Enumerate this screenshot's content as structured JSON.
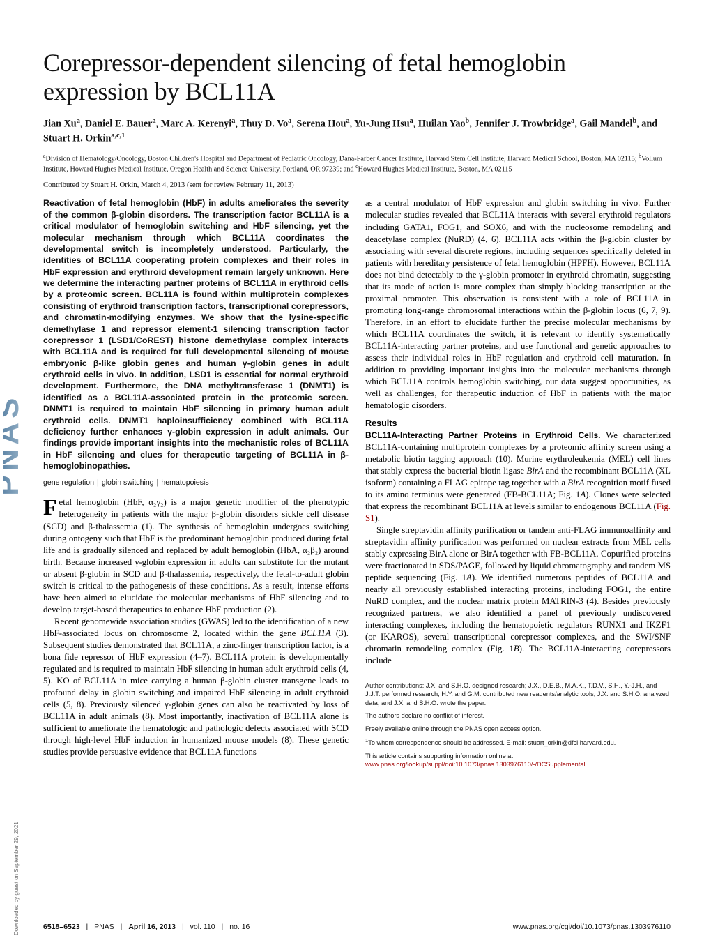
{
  "logo": {
    "letters": "PNAS PNAS",
    "grad_start": "#9fb8cc",
    "grad_end": "#3e6c94"
  },
  "download_note": "Downloaded by guest on September 29, 2021",
  "title": "Corepressor-dependent silencing of fetal hemoglobin expression by BCL11A",
  "authors_html": "Jian Xu<sup>a</sup>, Daniel E. Bauer<sup>a</sup>, Marc A. Kerenyi<sup>a</sup>, Thuy D. Vo<sup>a</sup>, Serena Hou<sup>a</sup>, Yu-Jung Hsu<sup>a</sup>, Huilan Yao<sup>b</sup>, Jennifer J. Trowbridge<sup>a</sup>, Gail Mandel<sup>b</sup>, and Stuart H. Orkin<sup>a,c,1</sup>",
  "affiliations_html": "<sup>a</sup>Division of Hematology/Oncology, Boston Children's Hospital and Department of Pediatric Oncology, Dana-Farber Cancer Institute, Harvard Stem Cell Institute, Harvard Medical School, Boston, MA 02115; <sup>b</sup>Vollum Institute, Howard Hughes Medical Institute, Oregon Health and Science University, Portland, OR 97239; and <sup>c</sup>Howard Hughes Medical Institute, Boston, MA 02115",
  "contributed": "Contributed by Stuart H. Orkin, March 4, 2013 (sent for review February 11, 2013)",
  "abstract": "Reactivation of fetal hemoglobin (HbF) in adults ameliorates the severity of the common β-globin disorders. The transcription factor BCL11A is a critical modulator of hemoglobin switching and HbF silencing, yet the molecular mechanism through which BCL11A coordinates the developmental switch is incompletely understood. Particularly, the identities of BCL11A cooperating protein complexes and their roles in HbF expression and erythroid development remain largely unknown. Here we determine the interacting partner proteins of BCL11A in erythroid cells by a proteomic screen. BCL11A is found within multiprotein complexes consisting of erythroid transcription factors, transcriptional corepressors, and chromatin-modifying enzymes. We show that the lysine-specific demethylase 1 and repressor element-1 silencing transcription factor corepressor 1 (LSD1/CoREST) histone demethylase complex interacts with BCL11A and is required for full developmental silencing of mouse embryonic β-like globin genes and human γ-globin genes in adult erythroid cells in vivo. In addition, LSD1 is essential for normal erythroid development. Furthermore, the DNA methyltransferase 1 (DNMT1) is identified as a BCL11A-associated protein in the proteomic screen. DNMT1 is required to maintain HbF silencing in primary human adult erythroid cells. DNMT1 haploinsufficiency combined with BCL11A deficiency further enhances γ-globin expression in adult animals. Our findings provide important insights into the mechanistic roles of BCL11A in HbF silencing and clues for therapeutic targeting of BCL11A in β-hemoglobinopathies.",
  "keywords": [
    "gene regulation",
    "globin switching",
    "hematopoiesis"
  ],
  "body_para_1": "etal hemoglobin (HbF, α₂γ₂) is a major genetic modifier of the phenotypic heterogeneity in patients with the major β-globin disorders sickle cell disease (SCD) and β-thalassemia (1). The synthesis of hemoglobin undergoes switching during ontogeny such that HbF is the predominant hemoglobin produced during fetal life and is gradually silenced and replaced by adult hemoglobin (HbA, α₂β₂) around birth. Because increased γ-globin expression in adults can substitute for the mutant or absent β-globin in SCD and β-thalassemia, respectively, the fetal-to-adult globin switch is critical to the pathogenesis of these conditions. As a result, intense efforts have been aimed to elucidate the molecular mechanisms of HbF silencing and to develop target-based therapeutics to enhance HbF production (2).",
  "body_para_2_html": "Recent genomewide association studies (GWAS) led to the identification of a new HbF-associated locus on chromosome 2, located within the gene <i>BCL11A</i> (3). Subsequent studies demonstrated that BCL11A, a zinc-finger transcription factor, is a bona fide repressor of HbF expression (4–7). BCL11A protein is developmentally regulated and is required to maintain HbF silencing in human adult erythroid cells (4, 5). KO of BCL11A in mice carrying a human β-globin cluster transgene leads to profound delay in globin switching and impaired HbF silencing in adult erythroid cells (5, 8). Previously silenced γ-globin genes can also be reactivated by loss of BCL11A in adult animals (8). Most importantly, inactivation of BCL11A alone is sufficient to ameliorate the hematologic and pathologic defects associated with SCD through high-level HbF induction in humanized mouse models (8). These genetic studies provide persuasive evidence that BCL11A functions",
  "body_para_3": "as a central modulator of HbF expression and globin switching in vivo. Further molecular studies revealed that BCL11A interacts with several erythroid regulators including GATA1, FOG1, and SOX6, and with the nucleosome remodeling and deacetylase complex (NuRD) (4, 6). BCL11A acts within the β-globin cluster by associating with several discrete regions, including sequences specifically deleted in patients with hereditary persistence of fetal hemoglobin (HPFH). However, BCL11A does not bind detectably to the γ-globin promoter in erythroid chromatin, suggesting that its mode of action is more complex than simply blocking transcription at the proximal promoter. This observation is consistent with a role of BCL11A in promoting long-range chromosomal interactions within the β-globin locus (6, 7, 9). Therefore, in an effort to elucidate further the precise molecular mechanisms by which BCL11A coordinates the switch, it is relevant to identify systematically BCL11A-interacting partner proteins, and use functional and genetic approaches to assess their individual roles in HbF regulation and erythroid cell maturation. In addition to providing important insights into the molecular mechanisms through which BCL11A controls hemoglobin switching, our data suggest opportunities, as well as challenges, for therapeutic induction of HbF in patients with the major hematologic disorders.",
  "results_head": "Results",
  "results_runin": "BCL11A-Interacting Partner Proteins in Erythroid Cells.",
  "results_p1_html": "We characterized BCL11A-containing multiprotein complexes by a proteomic affinity screen using a metabolic biotin tagging approach (10). Murine erythroleukemia (MEL) cell lines that stably express the bacterial biotin ligase <i>BirA</i> and the recombinant BCL11A (XL isoform) containing a FLAG epitope tag together with a <i>BirA</i> recognition motif fused to its amino terminus were generated (FB-BCL11A; Fig. 1<i>A</i>). Clones were selected that express the recombinant BCL11A at levels similar to endogenous BCL11A (<a class=\"link\">Fig. S1</a>).",
  "results_p2_html": "Single streptavidin affinity purification or tandem anti-FLAG immunoaffinity and streptavidin affinity purification was performed on nuclear extracts from MEL cells stably expressing BirA alone or BirA together with FB-BCL11A. Copurified proteins were fractionated in SDS/PAGE, followed by liquid chromatography and tandem MS peptide sequencing (Fig. 1<i>A</i>). We identified numerous peptides of BCL11A and nearly all previously established interacting proteins, including FOG1, the entire NuRD complex, and the nuclear matrix protein MATRIN-3 (4). Besides previously recognized partners, we also identified a panel of previously undiscovered interacting complexes, including the hematopoietic regulators RUNX1 and IKZF1 (or IKAROS), several transcriptional corepressor complexes, and the SWI/SNF chromatin remodeling complex (Fig. 1<i>B</i>). The BCL11A-interacting corepressors include",
  "footnotes": {
    "contrib": "Author contributions: J.X. and S.H.O. designed research; J.X., D.E.B., M.A.K., T.D.V., S.H., Y.-J.H., and J.J.T. performed research; H.Y. and G.M. contributed new reagents/analytic tools; J.X. and S.H.O. analyzed data; and J.X. and S.H.O. wrote the paper.",
    "coi": "The authors declare no conflict of interest.",
    "oa": "Freely available online through the PNAS open access option.",
    "corr_html": "<sup>1</sup>To whom correspondence should be addressed. E-mail: stuart_orkin@dfci.harvard.edu.",
    "si_pre": "This article contains supporting information online at ",
    "si_link": "www.pnas.org/lookup/suppl/doi:10.1073/pnas.1303976110/-/DCSupplemental",
    "si_post": "."
  },
  "footer": {
    "left_pages": "6518–6523",
    "journal": "PNAS",
    "date": "April 16, 2013",
    "vol": "vol. 110",
    "no": "no. 16",
    "doi": "www.pnas.org/cgi/doi/10.1073/pnas.1303976110"
  }
}
